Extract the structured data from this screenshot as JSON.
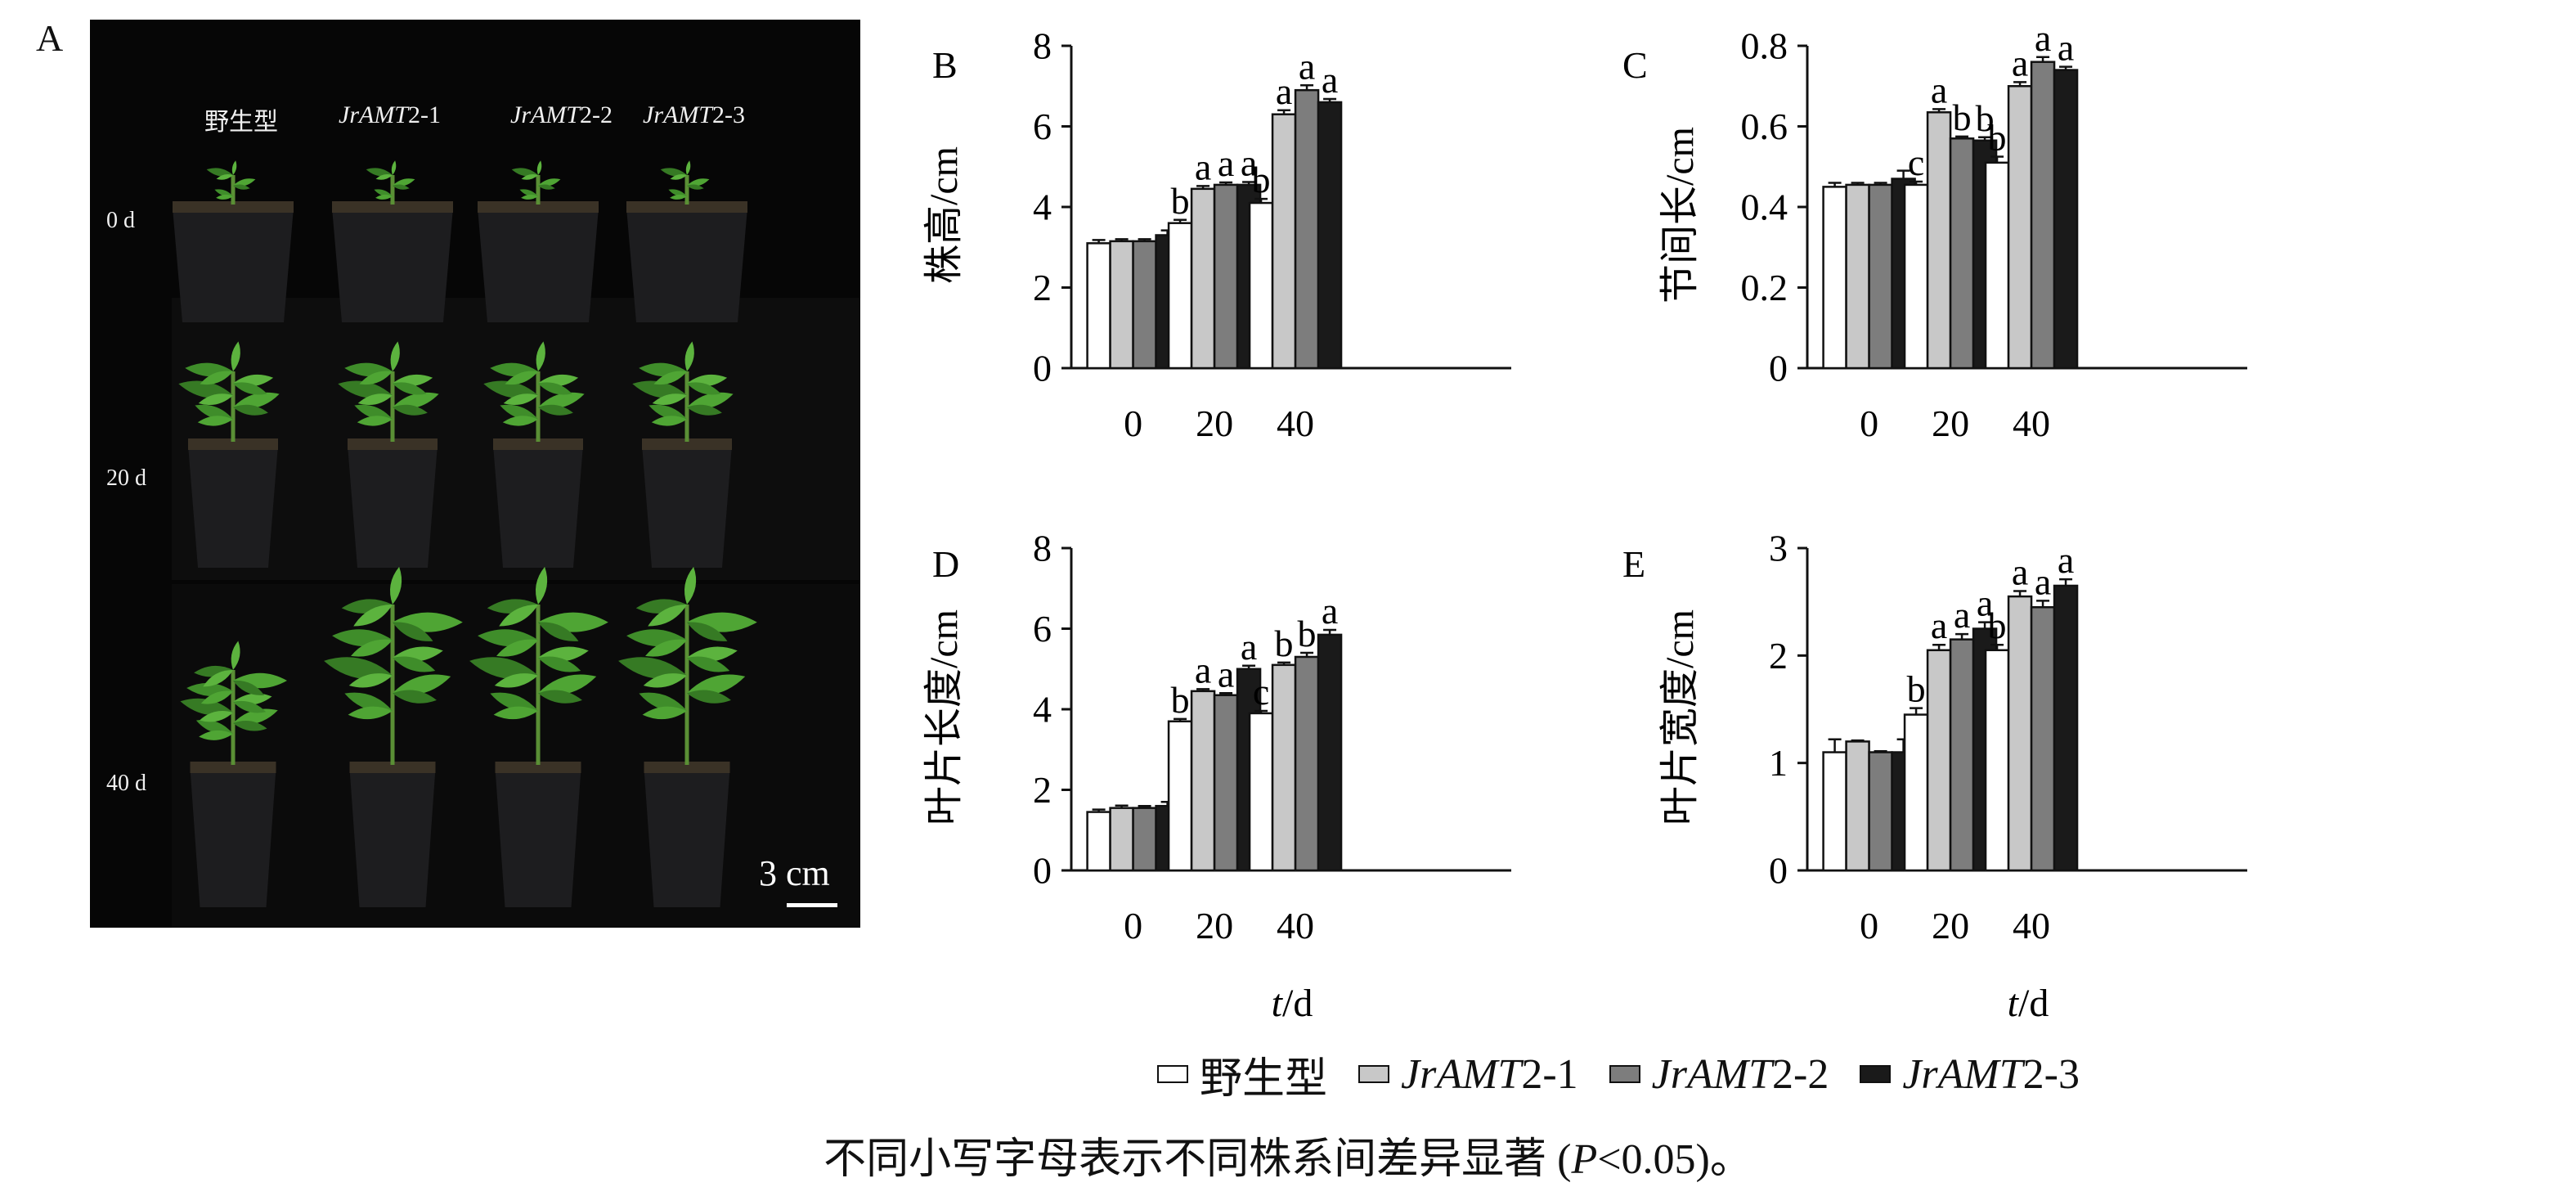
{
  "panel_a": {
    "letter": "A",
    "columns": [
      {
        "pre": "",
        "ital": "",
        "post": "野生型"
      },
      {
        "pre": "",
        "ital": "JrAMT",
        "post": "2-1"
      },
      {
        "pre": "",
        "ital": "JrAMT",
        "post": "2-2"
      },
      {
        "pre": "",
        "ital": "JrAMT",
        "post": "2-3"
      }
    ],
    "rows": [
      "0 d",
      "20 d",
      "40 d"
    ],
    "scale_label": "3 cm"
  },
  "legend": [
    {
      "pre": "",
      "ital": "",
      "post": "野生型",
      "color": "#ffffff"
    },
    {
      "pre": "",
      "ital": "JrAMT",
      "post": "2-1",
      "color": "#c8c8c8"
    },
    {
      "pre": "",
      "ital": "JrAMT",
      "post": "2-2",
      "color": "#7d7d7d"
    },
    {
      "pre": "",
      "ital": "JrAMT",
      "post": "2-3",
      "color": "#1a1a1a"
    }
  ],
  "xlabel": {
    "ital": "t",
    "rest": "/d"
  },
  "caption": {
    "pre": "不同小写字母表示不同株系间差异显著 (",
    "ital": "P",
    "post": "<0.05)。"
  },
  "chart_data": [
    {
      "letter": "B",
      "type": "bar",
      "ylabel": "株高/cm",
      "categories": [
        "0",
        "20",
        "40"
      ],
      "ylim": [
        0,
        8
      ],
      "yticks": [
        "0",
        "2",
        "4",
        "6",
        "8"
      ],
      "series": [
        {
          "values": [
            3.1,
            3.6,
            4.1
          ],
          "errors": [
            0.08,
            0.08,
            0.1
          ],
          "letters": [
            "",
            "b",
            "b"
          ]
        },
        {
          "values": [
            3.15,
            4.45,
            6.3
          ],
          "errors": [
            0.05,
            0.07,
            0.1
          ],
          "letters": [
            "",
            "a",
            "a"
          ]
        },
        {
          "values": [
            3.15,
            4.55,
            6.9
          ],
          "errors": [
            0.05,
            0.06,
            0.12
          ],
          "letters": [
            "",
            "a",
            "a"
          ]
        },
        {
          "values": [
            3.3,
            4.55,
            6.6
          ],
          "errors": [
            0.12,
            0.07,
            0.08
          ],
          "letters": [
            "",
            "a",
            "a"
          ]
        }
      ]
    },
    {
      "letter": "C",
      "type": "bar",
      "ylabel": "节间长/cm",
      "categories": [
        "0",
        "20",
        "40"
      ],
      "ylim": [
        0,
        0.8
      ],
      "yticks": [
        "0",
        "0.2",
        "0.4",
        "0.6",
        "0.8"
      ],
      "series": [
        {
          "values": [
            0.45,
            0.455,
            0.51
          ],
          "errors": [
            0.01,
            0.008,
            0.015
          ],
          "letters": [
            "",
            "c",
            "b"
          ]
        },
        {
          "values": [
            0.455,
            0.635,
            0.7
          ],
          "errors": [
            0.005,
            0.008,
            0.01
          ],
          "letters": [
            "",
            "a",
            "a"
          ]
        },
        {
          "values": [
            0.455,
            0.57,
            0.76
          ],
          "errors": [
            0.005,
            0.005,
            0.012
          ],
          "letters": [
            "",
            "b",
            "a"
          ]
        },
        {
          "values": [
            0.47,
            0.565,
            0.74
          ],
          "errors": [
            0.02,
            0.008,
            0.008
          ],
          "letters": [
            "",
            "b",
            "a"
          ]
        }
      ]
    },
    {
      "letter": "D",
      "type": "bar",
      "ylabel": "叶片长度/cm",
      "categories": [
        "0",
        "20",
        "40"
      ],
      "ylim": [
        0,
        8
      ],
      "yticks": [
        "0",
        "2",
        "4",
        "6",
        "8"
      ],
      "series": [
        {
          "values": [
            1.45,
            3.7,
            3.9
          ],
          "errors": [
            0.06,
            0.06,
            0.06
          ],
          "letters": [
            "",
            "b",
            "c"
          ]
        },
        {
          "values": [
            1.55,
            4.45,
            5.1
          ],
          "errors": [
            0.06,
            0.05,
            0.06
          ],
          "letters": [
            "",
            "a",
            "b"
          ]
        },
        {
          "values": [
            1.55,
            4.35,
            5.3
          ],
          "errors": [
            0.05,
            0.05,
            0.1
          ],
          "letters": [
            "",
            "a",
            "b"
          ]
        },
        {
          "values": [
            1.6,
            5.0,
            5.85
          ],
          "errors": [
            0.1,
            0.08,
            0.12
          ],
          "letters": [
            "",
            "a",
            "a"
          ]
        }
      ]
    },
    {
      "letter": "E",
      "type": "bar",
      "ylabel": "叶片宽度/cm",
      "categories": [
        "0",
        "20",
        "40"
      ],
      "ylim": [
        0,
        3
      ],
      "yticks": [
        "0",
        "1",
        "2",
        "3"
      ],
      "series": [
        {
          "values": [
            1.1,
            1.45,
            2.05
          ],
          "errors": [
            0.12,
            0.06,
            0.05
          ],
          "letters": [
            "",
            "b",
            "b"
          ]
        },
        {
          "values": [
            1.2,
            2.05,
            2.55
          ],
          "errors": [
            0.01,
            0.05,
            0.05
          ],
          "letters": [
            "",
            "a",
            "a"
          ]
        },
        {
          "values": [
            1.1,
            2.15,
            2.45
          ],
          "errors": [
            0.01,
            0.05,
            0.06
          ],
          "letters": [
            "",
            "a",
            "a"
          ]
        },
        {
          "values": [
            1.1,
            2.25,
            2.65
          ],
          "errors": [
            0.12,
            0.06,
            0.06
          ],
          "letters": [
            "",
            "a",
            "a"
          ]
        }
      ]
    }
  ]
}
